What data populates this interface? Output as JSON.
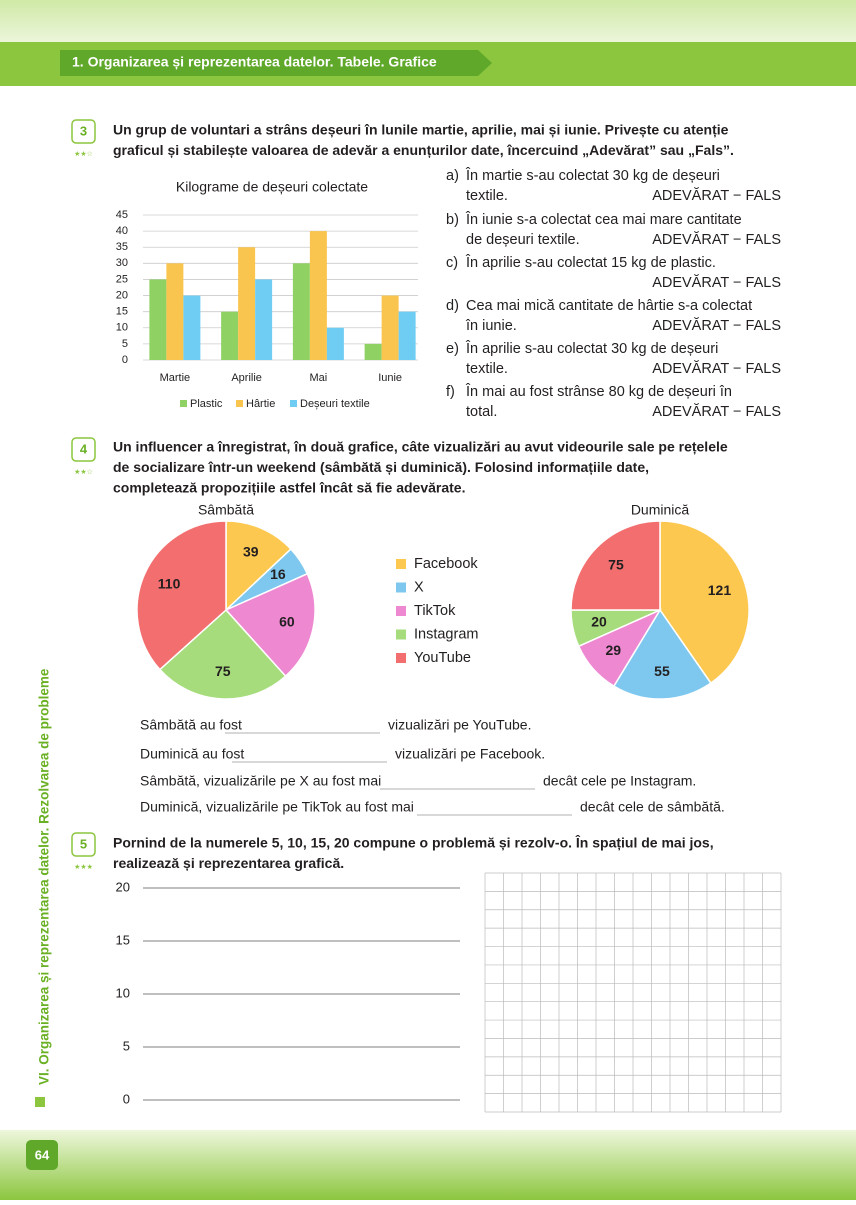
{
  "header": {
    "section": "1. Organizarea și reprezentarea datelor. Tabele. Grafice"
  },
  "sidebar": "VI. Organizarea și reprezentarea datelor. Rezolvarea de probleme",
  "page_number": "64",
  "exercises": [
    {
      "number": "3",
      "stars": "★★☆",
      "lines": [
        "Un grup de voluntari a strâns deșeuri în lunile martie, aprilie, mai și iunie. Privește cu atenție",
        "graficul și stabilește valoarea de adevăr a enunțurilor date, încercuind „Adevărat” sau „Fals”."
      ],
      "statements": [
        {
          "letter": "a)",
          "lines": [
            "În martie s-au colectat 30 kg de deșeuri",
            "textile."
          ],
          "answer": "ADEVĂRAT − FALS"
        },
        {
          "letter": "b)",
          "lines": [
            "În iunie s-a colectat cea mai mare cantitate",
            "de deșeuri textile."
          ],
          "answer": "ADEVĂRAT − FALS"
        },
        {
          "letter": "c)",
          "lines": [
            "În aprilie s-au colectat 15 kg de plastic."
          ],
          "answer": "ADEVĂRAT − FALS"
        },
        {
          "letter": "d)",
          "lines": [
            "Cea mai mică cantitate de hârtie s-a colectat",
            "în iunie."
          ],
          "answer": "ADEVĂRAT − FALS"
        },
        {
          "letter": "e)",
          "lines": [
            "În aprilie s-au colectat 30 kg de deșeuri",
            "textile."
          ],
          "answer": "ADEVĂRAT − FALS"
        },
        {
          "letter": "f)",
          "lines": [
            "În mai au fost strânse 80 kg de deșeuri în",
            "total."
          ],
          "answer": "ADEVĂRAT − FALS"
        }
      ]
    },
    {
      "number": "4",
      "stars": "★★☆",
      "lines": [
        "Un influencer a înregistrat, în două grafice, câte vizualizări au avut videourile sale pe rețelele",
        "de socializare într-un weekend (sâmbătă și duminică). Folosind informațiile date,",
        "completează propozițiile astfel încât să fie adevărate."
      ],
      "sentences": [
        {
          "before": "Sâmbătă au fost",
          "after": "vizualizări pe YouTube."
        },
        {
          "before": "Duminică au fost",
          "after": "vizualizări pe Facebook."
        },
        {
          "before": "Sâmbătă, vizualizările pe X au fost mai",
          "after": "decât cele pe Instagram."
        },
        {
          "before": "Duminică, vizualizările pe TikTok au fost mai",
          "after": "decât cele de sâmbătă."
        }
      ]
    },
    {
      "number": "5",
      "stars": "★★★",
      "lines": [
        "Pornind de la numerele 5, 10, 15, 20 compune o problemă și rezolv-o. În spațiul de mai jos,",
        "realizează și reprezentarea grafică."
      ],
      "writing_lines": [
        20,
        15,
        10,
        5,
        0
      ]
    }
  ],
  "chart_data": [
    {
      "type": "bar",
      "title": "Kilograme de deșeuri colectate",
      "categories": [
        "Martie",
        "Aprilie",
        "Mai",
        "Iunie"
      ],
      "series": [
        {
          "name": "Plastic",
          "color": "#8fd163",
          "values": [
            25,
            15,
            30,
            5
          ]
        },
        {
          "name": "Hârtie",
          "color": "#f9c54e",
          "values": [
            30,
            35,
            40,
            20
          ]
        },
        {
          "name": "Deșeuri textile",
          "color": "#6fcdf3",
          "values": [
            20,
            25,
            10,
            15
          ]
        }
      ],
      "ylim": [
        0,
        45
      ],
      "yticks": [
        0,
        5,
        10,
        15,
        20,
        25,
        30,
        35,
        40,
        45
      ],
      "grid": true,
      "legend": "bottom"
    },
    {
      "type": "pie",
      "categories": [
        "Facebook",
        "X",
        "TikTok",
        "Instagram",
        "YouTube"
      ],
      "colors": [
        "#fcc850",
        "#7ec8ef",
        "#ee88d1",
        "#a6dc7b",
        "#f36f6f"
      ],
      "series": [
        {
          "name": "Sâmbătă",
          "values": [
            39,
            16,
            60,
            75,
            110
          ]
        },
        {
          "name": "Duminică",
          "values": [
            121,
            55,
            29,
            20,
            75
          ]
        }
      ]
    }
  ]
}
